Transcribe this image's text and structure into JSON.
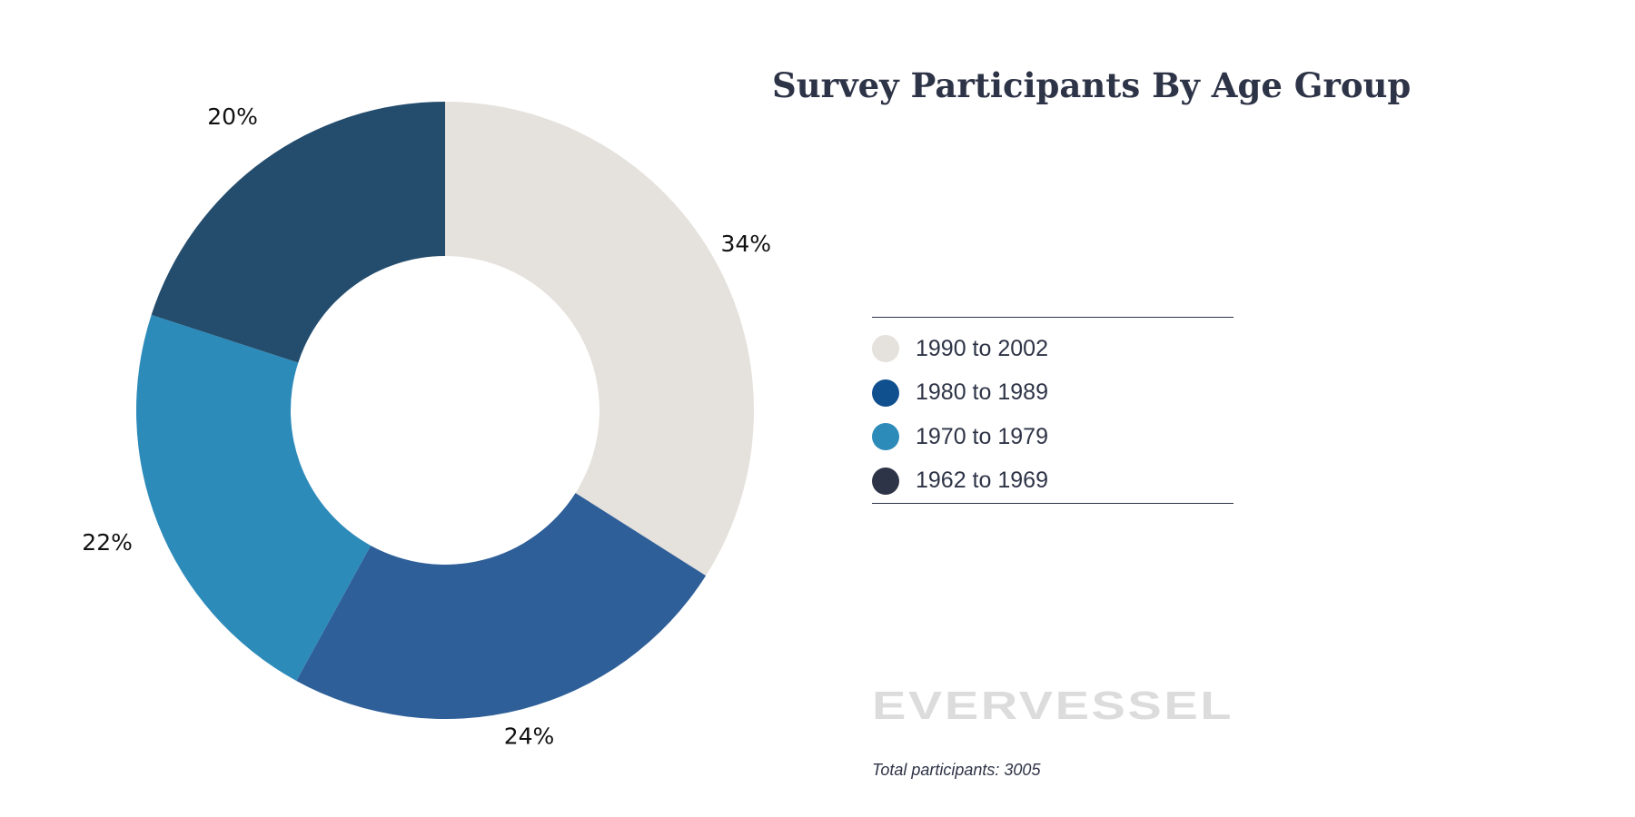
{
  "chart_data": {
    "type": "pie",
    "title": "Survey Participants By Age Group",
    "categories": [
      "1990 to 2002",
      "1980 to 1989",
      "1970 to 1979",
      "1962 to 1969"
    ],
    "values": [
      34,
      24,
      22,
      20
    ],
    "labels": [
      "34%",
      "24%",
      "22%",
      "20%"
    ],
    "slice_colors": [
      "#e5e1dc",
      "#2e5f98",
      "#2d8bba",
      "#234c6d"
    ],
    "legend": {
      "placement": "right",
      "entries": [
        {
          "label": "1990 to 2002",
          "color": "#e5e1dc"
        },
        {
          "label": "1980 to 1989",
          "color": "#10508f"
        },
        {
          "label": "1970 to 1979",
          "color": "#2d8bba"
        },
        {
          "label": "1962 to 1969",
          "color": "#2e3447"
        }
      ]
    }
  },
  "logo_text": "EVERVESSEL",
  "footnote": "Total participants: 3005"
}
